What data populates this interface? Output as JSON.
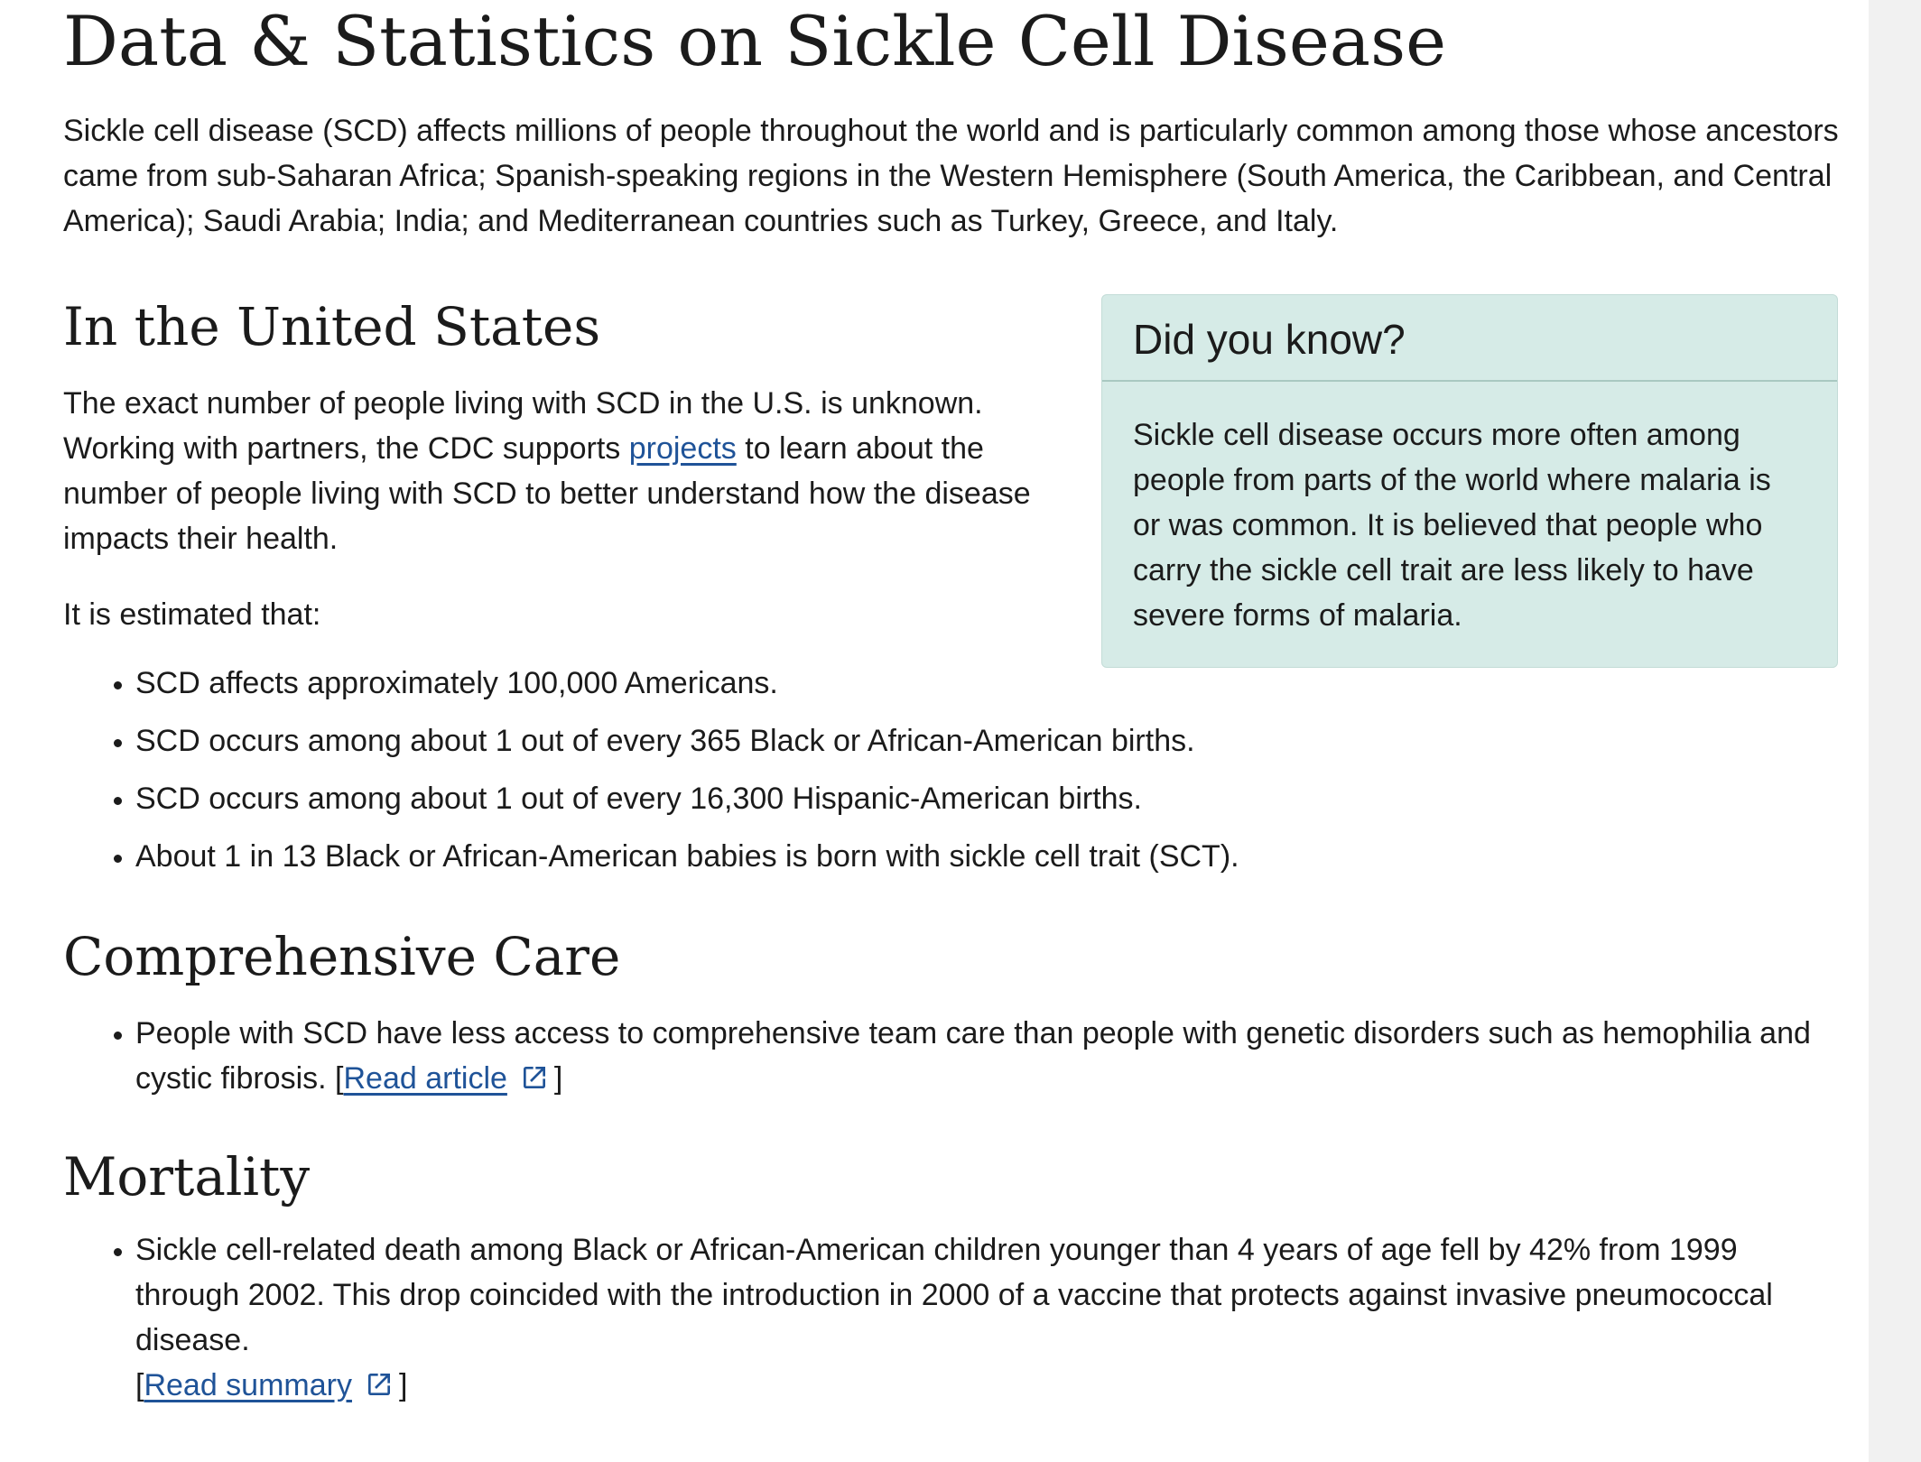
{
  "page_title": "Data & Statistics on Sickle Cell Disease",
  "intro": "Sickle cell disease (SCD) affects millions of people throughout the world and is particularly common among those whose ancestors came from sub-Saharan Africa; Spanish-speaking regions in the Western Hemisphere (South America, the Caribbean, and Central America); Saudi Arabia; India; and Mediterranean countries such as Turkey, Greece, and Italy.",
  "us": {
    "heading": "In the United States",
    "p1_before": "The exact number of people living with SCD in the U.S. is unknown. Working with partners, the CDC supports ",
    "p1_link": "projects",
    "p1_after": " to learn about the number of people living with SCD to better understand how the disease impacts their health.",
    "p2": "It is estimated that:",
    "stats": [
      "SCD affects approximately 100,000 Americans.",
      "SCD occurs among about 1 out of every 365 Black or African-American births.",
      "SCD occurs among about 1 out of every 16,300 Hispanic-American births.",
      "About 1 in 13 Black or African-American babies is born with sickle cell trait (SCT)."
    ]
  },
  "callout": {
    "title": "Did you know?",
    "body": "Sickle cell disease occurs more often among people from parts of the world where malaria is or was common. It is believed that people who carry the sickle cell trait are less likely to have severe forms of malaria."
  },
  "care": {
    "heading": "Comprehensive Care",
    "item_text": "People with SCD have less access to comprehensive team care than people with genetic disorders such as hemophilia and cystic fibrosis. [",
    "item_link": "Read article",
    "item_close": "]"
  },
  "mortality": {
    "heading": "Mortality",
    "item_text": "Sickle cell-related death among Black or African-American children younger than 4 years of age fell by 42% from 1999 through 2002. This drop coincided with the introduction in 2000 of a vaccine that protects against invasive pneumococcal disease.",
    "item_open": "[",
    "item_link": "Read summary",
    "item_close": "]"
  },
  "icons": {
    "external_link": "external-link-icon"
  },
  "colors": {
    "link": "#1f5398",
    "callout_bg": "#d6ebe7",
    "callout_divider": "#a9c8c1"
  }
}
